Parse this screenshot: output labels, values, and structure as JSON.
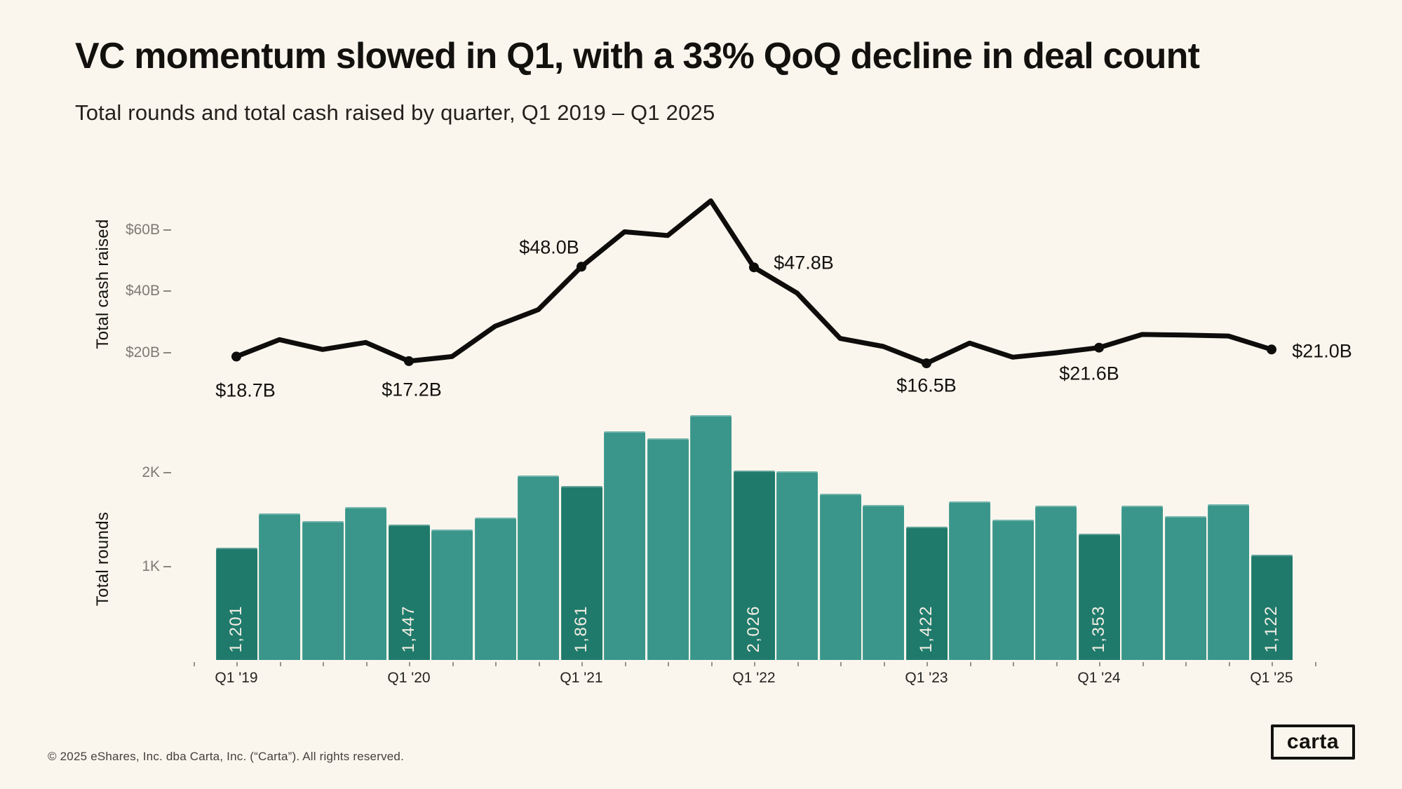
{
  "page": {
    "title": "VC momentum slowed in Q1, with a 33% QoQ decline in deal count",
    "subtitle": "Total rounds and total cash raised by quarter, Q1 2019 – Q1 2025",
    "footer": "© 2025 eShares, Inc. dba Carta, Inc. (“Carta”). All rights reserved.",
    "logo_text": "carta",
    "background_color": "#faf6ee"
  },
  "chart_data": [
    {
      "type": "line",
      "title": "Total cash raised by quarter",
      "ylabel": "Total cash raised",
      "unit": "USD billions",
      "x": [
        "Q1 '19",
        "Q2 '19",
        "Q3 '19",
        "Q4 '19",
        "Q1 '20",
        "Q2 '20",
        "Q3 '20",
        "Q4 '20",
        "Q1 '21",
        "Q2 '21",
        "Q3 '21",
        "Q4 '21",
        "Q1 '22",
        "Q2 '22",
        "Q3 '22",
        "Q4 '22",
        "Q1 '23",
        "Q2 '23",
        "Q3 '23",
        "Q4 '23",
        "Q1 '24",
        "Q2 '24",
        "Q3 '24",
        "Q4 '24",
        "Q1 '25"
      ],
      "values": [
        18.7,
        24.2,
        21.0,
        23.3,
        17.2,
        18.7,
        28.6,
        34.0,
        48.0,
        59.4,
        58.2,
        69.5,
        47.8,
        39.4,
        24.6,
        22.0,
        16.5,
        23.1,
        18.5,
        19.9,
        21.6,
        25.9,
        25.7,
        25.4,
        21.0
      ],
      "yticks": [
        "$20B",
        "$40B",
        "$60B"
      ],
      "ytick_values": [
        20,
        40,
        60
      ],
      "ylim": [
        12,
        73
      ],
      "grid": false,
      "legend": "none",
      "line_color": "#0e0d0b",
      "point_labels": [
        {
          "index": 0,
          "text": "$18.7B"
        },
        {
          "index": 4,
          "text": "$17.2B"
        },
        {
          "index": 8,
          "text": "$48.0B"
        },
        {
          "index": 12,
          "text": "$47.8B"
        },
        {
          "index": 16,
          "text": "$16.5B"
        },
        {
          "index": 20,
          "text": "$21.6B"
        },
        {
          "index": 24,
          "text": "$21.0B"
        }
      ]
    },
    {
      "type": "bar",
      "title": "Total rounds by quarter",
      "ylabel": "Total rounds",
      "categories": [
        "Q1 '19",
        "Q2 '19",
        "Q3 '19",
        "Q4 '19",
        "Q1 '20",
        "Q2 '20",
        "Q3 '20",
        "Q4 '20",
        "Q1 '21",
        "Q2 '21",
        "Q3 '21",
        "Q4 '21",
        "Q1 '22",
        "Q2 '22",
        "Q3 '22",
        "Q4 '22",
        "Q1 '23",
        "Q2 '23",
        "Q3 '23",
        "Q4 '23",
        "Q1 '24",
        "Q2 '24",
        "Q3 '24",
        "Q4 '24",
        "Q1 '25"
      ],
      "values": [
        1201,
        1570,
        1484,
        1637,
        1447,
        1395,
        1520,
        1972,
        1861,
        2447,
        2371,
        2622,
        2026,
        2017,
        1780,
        1655,
        1422,
        1698,
        1497,
        1648,
        1353,
        1648,
        1537,
        1663,
        1122
      ],
      "yticks": [
        "1K",
        "2K"
      ],
      "ytick_values": [
        1000,
        2000
      ],
      "ylim": [
        0,
        2700
      ],
      "grid": false,
      "bar_color": "#3a968a",
      "highlight_color": "#1f7a6b",
      "highlight_note": "Q1 bars (every 4th) are darker and carry value labels",
      "bar_labels": [
        {
          "index": 0,
          "text": "1,201"
        },
        {
          "index": 4,
          "text": "1,447"
        },
        {
          "index": 8,
          "text": "1,861"
        },
        {
          "index": 12,
          "text": "2,026"
        },
        {
          "index": 16,
          "text": "1,422"
        },
        {
          "index": 20,
          "text": "1,353"
        },
        {
          "index": 24,
          "text": "1,122"
        }
      ],
      "xtick_labels": [
        "Q1 '19",
        "Q1 '20",
        "Q1 '21",
        "Q1 '22",
        "Q1 '23",
        "Q1 '24",
        "Q1 '25"
      ]
    }
  ]
}
